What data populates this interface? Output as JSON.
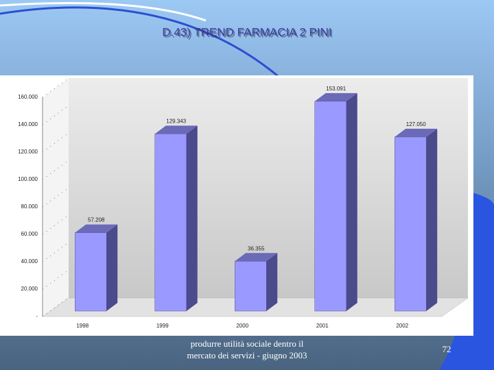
{
  "chart_data": {
    "type": "bar3d",
    "title": "D.43) TREND FARMACIA 2 PINI",
    "categories": [
      "1998",
      "1999",
      "2000",
      "2001",
      "2002"
    ],
    "values": [
      57208,
      129343,
      36355,
      153091,
      127050
    ],
    "value_labels": [
      "57.208",
      "129.343",
      "36.355",
      "153.091",
      "127.050"
    ],
    "color": "#9999ff",
    "ylim": [
      0,
      160000
    ],
    "yticks": [
      {
        "value": 0,
        "label": "-"
      },
      {
        "value": 20000,
        "label": "20.000"
      },
      {
        "value": 40000,
        "label": "40.000"
      },
      {
        "value": 60000,
        "label": "60.000"
      },
      {
        "value": 80000,
        "label": "80.000"
      },
      {
        "value": 100000,
        "label": "100.000"
      },
      {
        "value": 120000,
        "label": "120.000"
      },
      {
        "value": 140000,
        "label": "140.000"
      },
      {
        "value": 160000,
        "label": "160.000"
      }
    ],
    "footer": [
      "produrre utilità sociale dentro il",
      "mercato dei servizi - giugno 2003"
    ],
    "page_number": 72
  }
}
